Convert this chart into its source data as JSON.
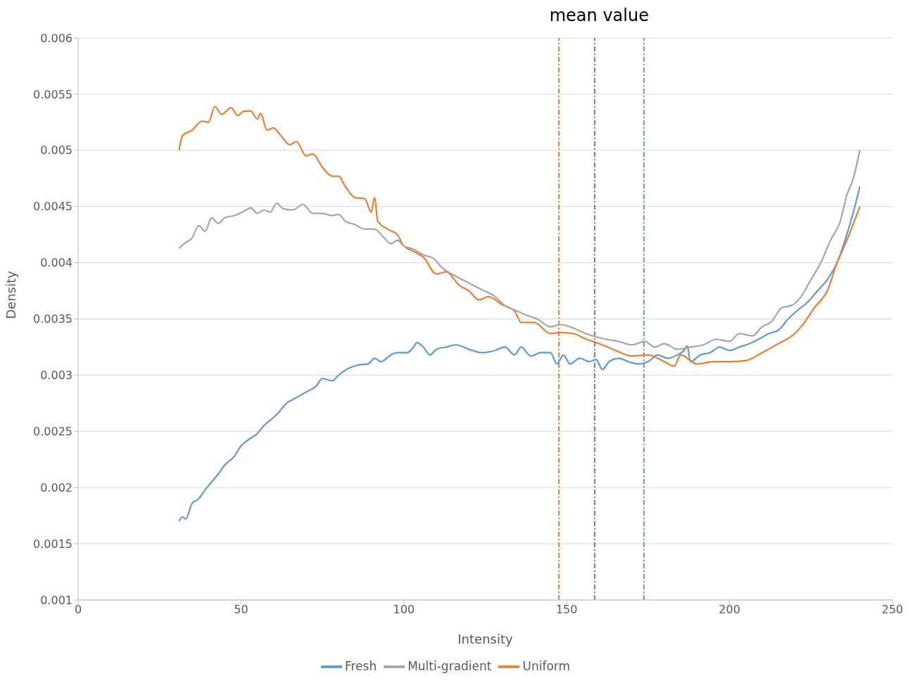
{
  "chart_data": {
    "type": "line",
    "title": "mean value",
    "xlabel": "Intensity",
    "ylabel": "Density",
    "xlim": [
      0,
      250
    ],
    "xticks": [
      0,
      50,
      100,
      150,
      200,
      250
    ],
    "ylim": [
      0.001,
      0.006
    ],
    "yticks": [
      0.001,
      0.0015,
      0.002,
      0.0025,
      0.003,
      0.0035,
      0.004,
      0.0045,
      0.005,
      0.0055,
      0.006
    ],
    "grid": "y",
    "legend": "bottom",
    "marker": "none",
    "line_style": "solid",
    "series": [
      {
        "name": "Fresh",
        "color": "#5b9bd5",
        "x": [
          31,
          32,
          33,
          35,
          37,
          39,
          41,
          43,
          45,
          48,
          50,
          52,
          55,
          57,
          59,
          61,
          64,
          67,
          70,
          73,
          75,
          78,
          80,
          83,
          86,
          89,
          91,
          93,
          96,
          98,
          101,
          103,
          104,
          106,
          108,
          110,
          113,
          116,
          120,
          124,
          128,
          131,
          134,
          136,
          139,
          142,
          145,
          147,
          149,
          151,
          154,
          157,
          159,
          161,
          163,
          166,
          169,
          172,
          175,
          178,
          181,
          184,
          186,
          187,
          188,
          191,
          194,
          197,
          200,
          203,
          206,
          209,
          212,
          215,
          218,
          221,
          224,
          227,
          230,
          233,
          236,
          238,
          240
        ],
        "values": [
          0.0017,
          0.00174,
          0.00172,
          0.00186,
          0.0019,
          0.00198,
          0.00205,
          0.00212,
          0.0022,
          0.00228,
          0.00237,
          0.00242,
          0.00248,
          0.00255,
          0.0026,
          0.00265,
          0.00275,
          0.0028,
          0.00285,
          0.0029,
          0.00297,
          0.00295,
          0.003,
          0.00306,
          0.00309,
          0.0031,
          0.00315,
          0.00312,
          0.00318,
          0.0032,
          0.0032,
          0.00325,
          0.00329,
          0.00325,
          0.00318,
          0.00323,
          0.00325,
          0.00327,
          0.00323,
          0.0032,
          0.00322,
          0.00325,
          0.00318,
          0.00325,
          0.00317,
          0.0032,
          0.0032,
          0.0031,
          0.00318,
          0.0031,
          0.00315,
          0.00312,
          0.00314,
          0.00305,
          0.00312,
          0.00315,
          0.00312,
          0.0031,
          0.00312,
          0.00318,
          0.00315,
          0.00318,
          0.00322,
          0.00326,
          0.00312,
          0.00318,
          0.0032,
          0.00325,
          0.00322,
          0.00325,
          0.00328,
          0.00332,
          0.00337,
          0.0034,
          0.0035,
          0.00358,
          0.00365,
          0.00375,
          0.00385,
          0.004,
          0.00425,
          0.00445,
          0.00468
        ]
      },
      {
        "name": "Uniform",
        "color": "#ed7d31",
        "x": [
          31,
          32,
          35,
          38,
          40,
          42,
          44,
          47,
          49,
          51,
          53,
          55,
          56,
          58,
          60,
          62,
          65,
          67,
          70,
          72,
          75,
          78,
          80,
          82,
          85,
          88,
          90,
          91,
          92,
          95,
          98,
          100,
          103,
          106,
          110,
          113,
          117,
          120,
          123,
          126,
          130,
          134,
          136,
          140,
          145,
          148,
          152,
          156,
          160,
          165,
          170,
          175,
          180,
          183,
          185,
          190,
          195,
          200,
          205,
          210,
          215,
          220,
          223,
          226,
          230,
          233,
          236,
          240
        ],
        "values": [
          0.005,
          0.00513,
          0.00518,
          0.00526,
          0.00525,
          0.00539,
          0.00532,
          0.00538,
          0.00531,
          0.00535,
          0.00535,
          0.00528,
          0.00533,
          0.00518,
          0.0052,
          0.00514,
          0.00505,
          0.00508,
          0.00495,
          0.00497,
          0.00485,
          0.00477,
          0.00477,
          0.00468,
          0.00458,
          0.00457,
          0.00445,
          0.00458,
          0.00437,
          0.0043,
          0.00425,
          0.00415,
          0.0041,
          0.00405,
          0.0039,
          0.00392,
          0.0038,
          0.00375,
          0.00367,
          0.0037,
          0.00363,
          0.00357,
          0.00347,
          0.00347,
          0.00337,
          0.00338,
          0.00337,
          0.00332,
          0.00328,
          0.00322,
          0.00317,
          0.00318,
          0.00312,
          0.00308,
          0.00318,
          0.0031,
          0.00312,
          0.00312,
          0.00313,
          0.0032,
          0.00328,
          0.00337,
          0.00347,
          0.0036,
          0.00375,
          0.004,
          0.0042,
          0.0045
        ]
      },
      {
        "name": "Multi-gradient",
        "color": "#a5a5a5",
        "x": [
          31,
          33,
          35,
          37,
          39,
          41,
          43,
          45,
          48,
          51,
          53,
          55,
          57,
          59,
          61,
          63,
          66,
          69,
          72,
          75,
          78,
          80,
          82,
          85,
          88,
          91,
          94,
          96,
          98,
          100,
          103,
          106,
          109,
          112,
          116,
          120,
          124,
          128,
          131,
          134,
          138,
          141,
          145,
          148,
          152,
          155,
          158,
          162,
          166,
          170,
          174,
          177,
          180,
          184,
          188,
          192,
          196,
          200,
          203,
          207,
          210,
          213,
          216,
          219,
          222,
          225,
          228,
          231,
          234,
          236,
          238,
          240
        ],
        "values": [
          0.00413,
          0.00418,
          0.00422,
          0.00433,
          0.00428,
          0.0044,
          0.00435,
          0.0044,
          0.00442,
          0.00446,
          0.00449,
          0.00444,
          0.00447,
          0.00445,
          0.00453,
          0.00448,
          0.00447,
          0.00452,
          0.00444,
          0.00444,
          0.00442,
          0.00443,
          0.00437,
          0.00434,
          0.0043,
          0.0043,
          0.00422,
          0.00417,
          0.0042,
          0.00415,
          0.00412,
          0.00407,
          0.00404,
          0.00395,
          0.00388,
          0.00382,
          0.00376,
          0.0037,
          0.00362,
          0.00358,
          0.00353,
          0.0035,
          0.00343,
          0.00345,
          0.00342,
          0.00338,
          0.00335,
          0.00332,
          0.0033,
          0.00327,
          0.0033,
          0.00325,
          0.00328,
          0.00323,
          0.00325,
          0.00327,
          0.00332,
          0.0033,
          0.00337,
          0.00335,
          0.00343,
          0.00348,
          0.0036,
          0.00362,
          0.0037,
          0.00385,
          0.004,
          0.0042,
          0.00437,
          0.0046,
          0.00475,
          0.005
        ]
      }
    ],
    "ref_lines": [
      {
        "axis": "x",
        "value": 147.6,
        "color": "#ed7d31",
        "line_style": "dashed"
      },
      {
        "axis": "x",
        "value": 158.6,
        "color": "#7f7f7f",
        "line_style": "dashed"
      },
      {
        "axis": "x",
        "value": 173.7,
        "color": "#5b9bd5",
        "line_style": "dashed"
      }
    ]
  }
}
